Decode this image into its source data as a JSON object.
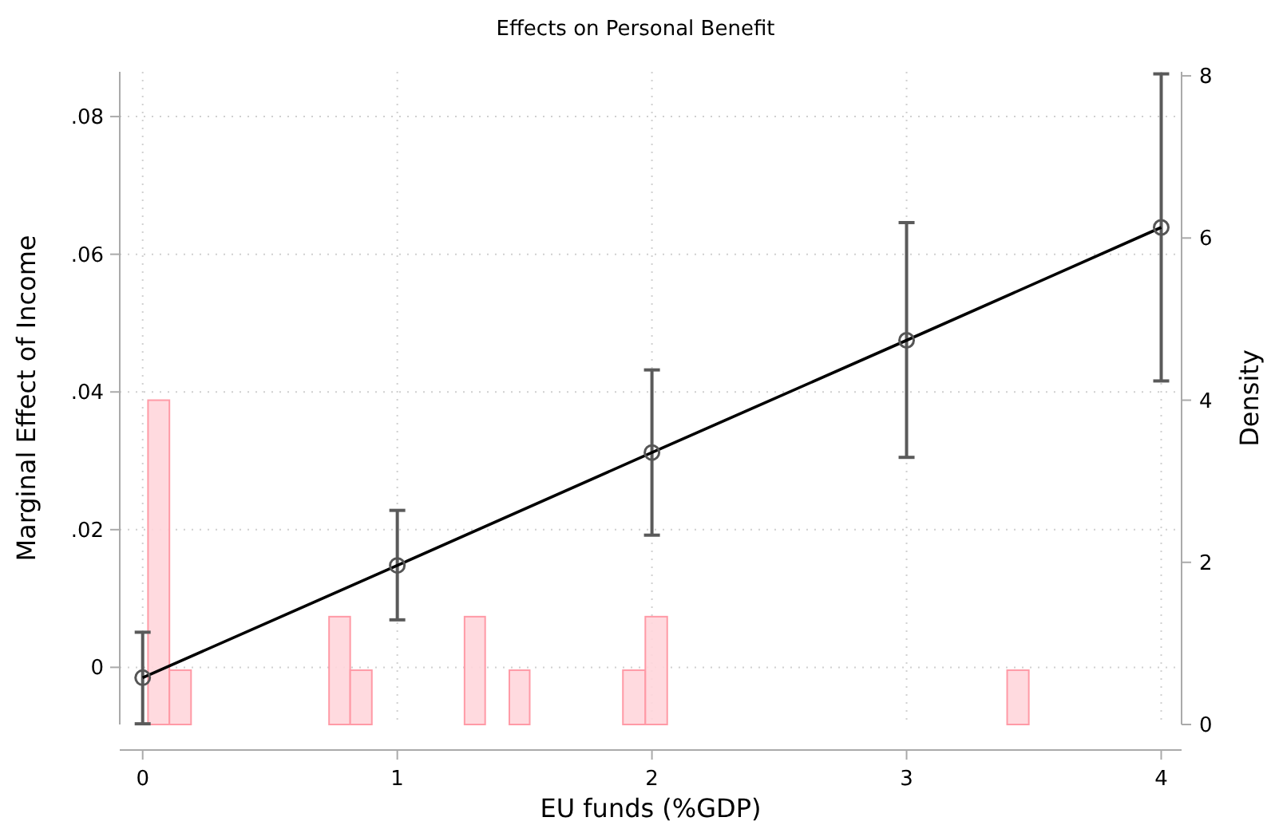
{
  "chart_data": {
    "type": "line",
    "title": "Effects on Personal Benefit",
    "xlabel": "EU funds (%GDP)",
    "ylabel": "Marginal Effect of Income",
    "y2label": "Density",
    "xlim": [
      -0.09,
      4.08
    ],
    "xticks": [
      0,
      1,
      2,
      3,
      4
    ],
    "ylim": [
      -0.0083,
      0.0865
    ],
    "yticks": [
      {
        "value": 0,
        "label": "0"
      },
      {
        "value": 0.02,
        "label": ".02"
      },
      {
        "value": 0.04,
        "label": ".04"
      },
      {
        "value": 0.06,
        "label": ".06"
      },
      {
        "value": 0.08,
        "label": ".08"
      }
    ],
    "y2lim": [
      0,
      8.05
    ],
    "y2ticks": [
      0,
      2,
      4,
      6,
      8
    ],
    "grid": true,
    "marker": "circle",
    "line_style": "solid",
    "series": [
      {
        "type": "histogram",
        "axis": "y2",
        "color": "#ffd6dc",
        "bins": [
          0.021,
          0.105,
          0.19,
          0.732,
          0.815,
          0.9,
          1.264,
          1.345,
          1.44,
          1.52,
          1.886,
          1.974,
          2.06,
          3.395,
          3.48
        ],
        "values": [
          4,
          0.67,
          0,
          1.33,
          0.67,
          0,
          1.33,
          0,
          0.67,
          0,
          0.67,
          1.33,
          0,
          0.67
        ]
      },
      {
        "color": "#000000",
        "x": [
          0,
          1,
          2,
          3,
          4
        ],
        "values": [
          -0.0015,
          0.0148,
          0.0312,
          0.0475,
          0.0639
        ],
        "errors": [
          [
            -0.0082,
            0.0051
          ],
          [
            0.0069,
            0.0228
          ],
          [
            0.0192,
            0.0432
          ],
          [
            0.0305,
            0.0646
          ],
          [
            0.0416,
            0.0862
          ]
        ]
      }
    ]
  }
}
